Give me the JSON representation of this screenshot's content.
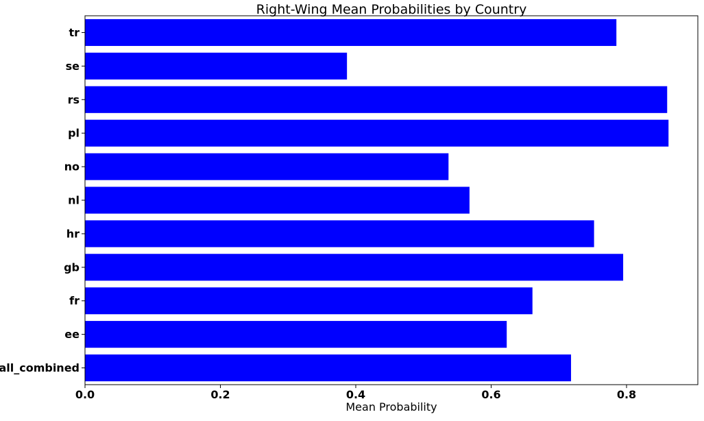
{
  "chart_data": {
    "type": "bar",
    "orientation": "horizontal",
    "title": "Right-Wing Mean Probabilities by Country",
    "xlabel": "Mean Probability",
    "ylabel": "",
    "categories": [
      "all_combined",
      "ee",
      "fr",
      "gb",
      "hr",
      "nl",
      "no",
      "pl",
      "rs",
      "se",
      "tr"
    ],
    "values": [
      0.718,
      0.623,
      0.661,
      0.795,
      0.752,
      0.568,
      0.537,
      0.862,
      0.86,
      0.387,
      0.785
    ],
    "xlim": [
      0.0,
      0.9053
    ],
    "xticks": [
      0.0,
      0.2,
      0.4,
      0.6,
      0.8
    ],
    "xtick_labels": [
      "0.0",
      "0.2",
      "0.4",
      "0.6",
      "0.8"
    ],
    "bar_color": "#0000ff",
    "grid": false,
    "legend": "none"
  }
}
